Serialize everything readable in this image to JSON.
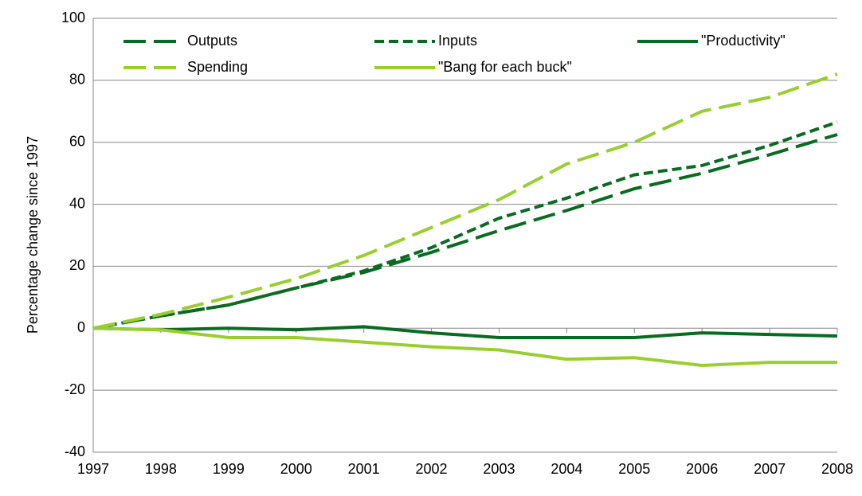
{
  "chart_data": {
    "type": "line",
    "y_label": "Percentage change since 1997",
    "categories": [
      "1997",
      "1998",
      "1999",
      "2000",
      "2001",
      "2002",
      "2003",
      "2004",
      "2005",
      "2006",
      "2007",
      "2008"
    ],
    "series": [
      {
        "name": "Outputs",
        "color": "#0a6a22",
        "style": "long-dash",
        "values": [
          0,
          4,
          7.5,
          13,
          18,
          24.5,
          31.5,
          38,
          45,
          50,
          56,
          62.5
        ]
      },
      {
        "name": "Inputs",
        "color": "#0a6a22",
        "style": "short-dash",
        "values": [
          0,
          4,
          7.5,
          13,
          18.5,
          26,
          35.5,
          42,
          49.5,
          52.5,
          59,
          66.5
        ]
      },
      {
        "name": "\"Productivity\"",
        "color": "#0a6a22",
        "style": "solid",
        "values": [
          0,
          -0.5,
          0,
          -0.5,
          0.5,
          -1.5,
          -3,
          -3,
          -3,
          -1.5,
          -2,
          -2.5
        ]
      },
      {
        "name": "Spending",
        "color": "#9acd32",
        "style": "long-dash",
        "values": [
          0,
          4.5,
          10,
          16,
          23.5,
          32.5,
          41.5,
          53,
          60,
          70,
          74.5,
          82
        ]
      },
      {
        "name": "\"Bang for each buck\"",
        "color": "#9acd32",
        "style": "solid",
        "values": [
          0,
          -0.5,
          -3,
          -3,
          -4.5,
          -6,
          -7,
          -10,
          -9.5,
          -12,
          -11,
          -11
        ]
      }
    ],
    "ylim": [
      -40,
      100
    ],
    "yticks": [
      -40,
      -20,
      0,
      20,
      40,
      60,
      80,
      100
    ],
    "grid": true,
    "legend": "top"
  }
}
